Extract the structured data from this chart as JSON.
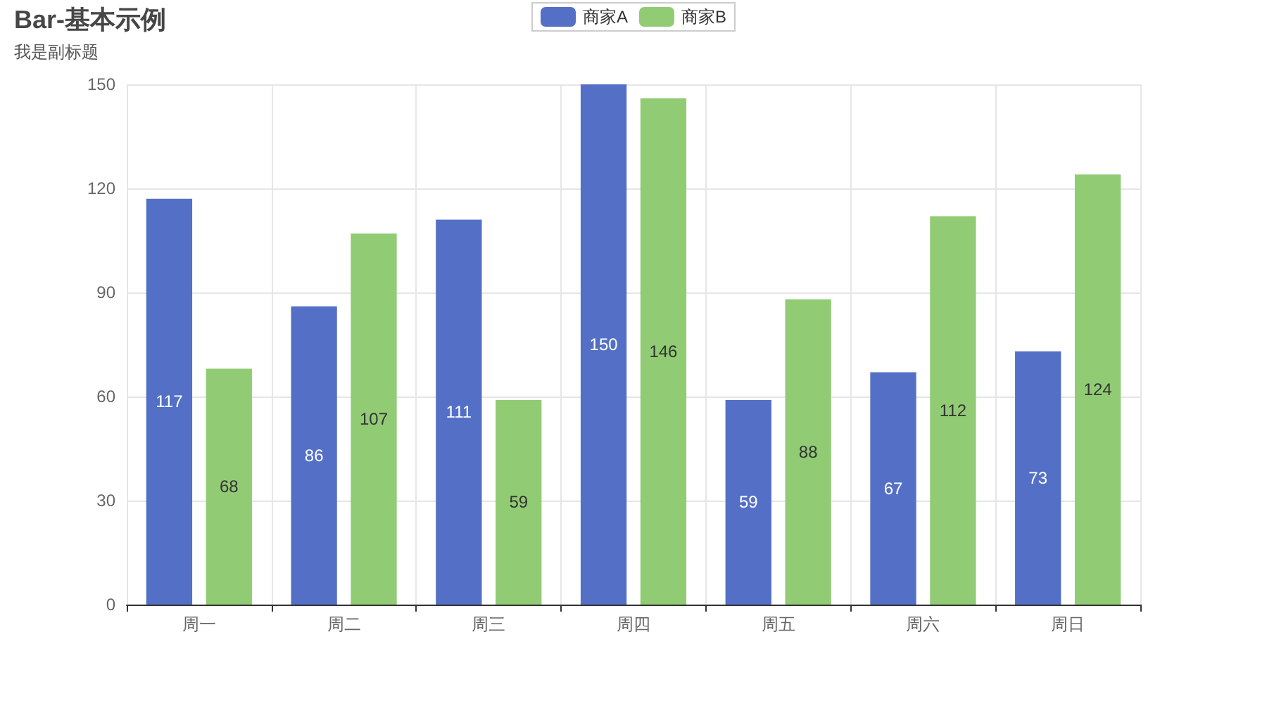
{
  "chart_data": {
    "type": "bar",
    "title": "Bar-基本示例",
    "subtitle": "我是副标题",
    "categories": [
      "周一",
      "周二",
      "周三",
      "周四",
      "周五",
      "周六",
      "周日"
    ],
    "series": [
      {
        "name": "商家A",
        "color": "#5470c6",
        "values": [
          117,
          86,
          111,
          150,
          59,
          67,
          73
        ]
      },
      {
        "name": "商家B",
        "color": "#91cc75",
        "values": [
          68,
          107,
          59,
          146,
          88,
          112,
          124
        ]
      }
    ],
    "ylim": [
      0,
      150
    ],
    "yticks": [
      0,
      30,
      60,
      90,
      120,
      150
    ],
    "grid": true,
    "legend": "top",
    "data_labels": true
  }
}
